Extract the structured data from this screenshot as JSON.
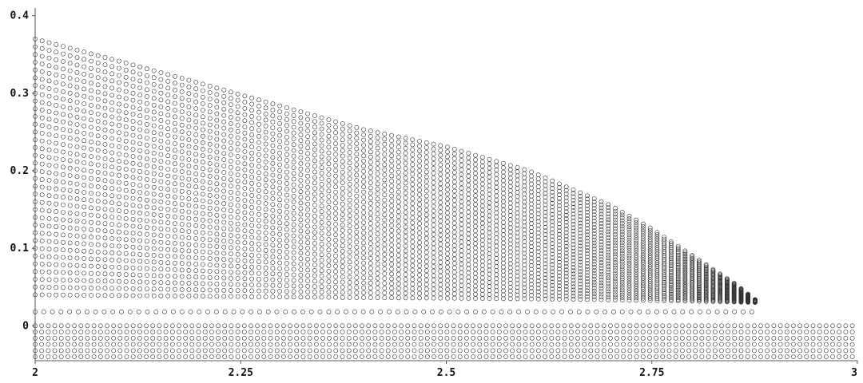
{
  "chart_data": {
    "type": "scatter",
    "title": "",
    "xlabel": "",
    "ylabel": "",
    "xlim": [
      2,
      3
    ],
    "ylim": [
      -0.045,
      0.41
    ],
    "grid": false,
    "marker": "open-circle",
    "colors": {
      "marker": "#333333",
      "axis": "#555555",
      "text": "#111111"
    },
    "x_ticks": [
      {
        "value": 2,
        "label": "2"
      },
      {
        "value": 2.25,
        "label": "2.25"
      },
      {
        "value": 2.5,
        "label": "2.5"
      },
      {
        "value": 2.75,
        "label": "2.75"
      },
      {
        "value": 3,
        "label": "3"
      }
    ],
    "y_ticks": [
      {
        "value": 0,
        "label": "0"
      },
      {
        "value": 0.1,
        "label": "0.1"
      },
      {
        "value": 0.2,
        "label": "0.2"
      },
      {
        "value": 0.3,
        "label": "0.3"
      },
      {
        "value": 0.4,
        "label": "0.4"
      }
    ],
    "series": [
      {
        "description_pattern": "upper_envelope",
        "x": [
          2.0,
          2.1,
          2.2,
          2.3,
          2.4,
          2.5,
          2.6,
          2.7,
          2.75,
          2.8,
          2.85,
          2.88
        ],
        "y": [
          0.37,
          0.342,
          0.313,
          0.283,
          0.253,
          0.231,
          0.2,
          0.155,
          0.125,
          0.09,
          0.055,
          0.03
        ]
      },
      {
        "description_pattern": "constant_row",
        "x_range": [
          2.0,
          2.88
        ],
        "y": 0.018
      },
      {
        "description_pattern": "negative_band",
        "x_range": [
          2.0,
          3.0
        ],
        "y": [
          0.0,
          -0.008,
          -0.016,
          -0.024,
          -0.032,
          -0.04
        ]
      }
    ]
  }
}
